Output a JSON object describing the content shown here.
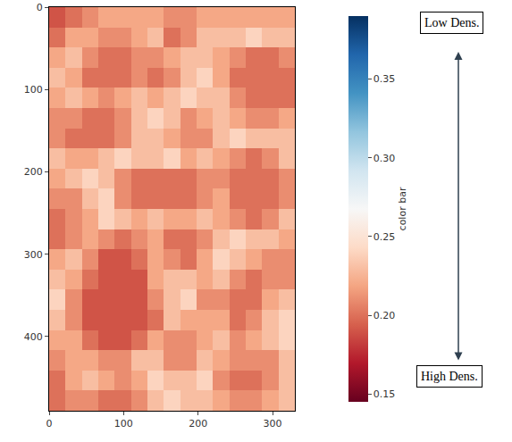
{
  "chart_data": {
    "type": "heatmap",
    "x": [
      11,
      33,
      55,
      77,
      99,
      121,
      143,
      165,
      187,
      209,
      231,
      253,
      275,
      297,
      319
    ],
    "y": [
      12.25,
      36.75,
      61.25,
      85.75,
      110.25,
      134.75,
      159.25,
      183.75,
      208.25,
      232.75,
      257.25,
      281.75,
      306.25,
      330.75,
      355.25,
      379.75,
      404.25,
      428.75,
      453.25,
      477.75
    ],
    "cells": [
      [
        0.19,
        0.2,
        0.21,
        0.22,
        0.22,
        0.22,
        0.22,
        0.21,
        0.21,
        0.22,
        0.22,
        0.22,
        0.22,
        0.22,
        0.22
      ],
      [
        0.2,
        0.22,
        0.22,
        0.21,
        0.21,
        0.22,
        0.23,
        0.2,
        0.21,
        0.23,
        0.23,
        0.23,
        0.24,
        0.23,
        0.23
      ],
      [
        0.22,
        0.23,
        0.21,
        0.2,
        0.2,
        0.21,
        0.21,
        0.22,
        0.23,
        0.23,
        0.22,
        0.21,
        0.2,
        0.2,
        0.21
      ],
      [
        0.23,
        0.22,
        0.2,
        0.2,
        0.2,
        0.21,
        0.2,
        0.21,
        0.23,
        0.24,
        0.22,
        0.2,
        0.2,
        0.2,
        0.2
      ],
      [
        0.22,
        0.23,
        0.22,
        0.21,
        0.22,
        0.23,
        0.22,
        0.23,
        0.24,
        0.23,
        0.23,
        0.21,
        0.2,
        0.2,
        0.2
      ],
      [
        0.21,
        0.21,
        0.2,
        0.2,
        0.21,
        0.23,
        0.24,
        0.23,
        0.21,
        0.22,
        0.23,
        0.22,
        0.21,
        0.21,
        0.22
      ],
      [
        0.21,
        0.2,
        0.2,
        0.2,
        0.21,
        0.23,
        0.23,
        0.22,
        0.21,
        0.21,
        0.23,
        0.24,
        0.23,
        0.23,
        0.23
      ],
      [
        0.23,
        0.22,
        0.22,
        0.23,
        0.24,
        0.23,
        0.23,
        0.24,
        0.22,
        0.23,
        0.22,
        0.21,
        0.2,
        0.21,
        0.23
      ],
      [
        0.22,
        0.23,
        0.24,
        0.23,
        0.21,
        0.2,
        0.2,
        0.2,
        0.2,
        0.21,
        0.21,
        0.2,
        0.2,
        0.2,
        0.21
      ],
      [
        0.21,
        0.21,
        0.23,
        0.24,
        0.21,
        0.2,
        0.2,
        0.2,
        0.2,
        0.21,
        0.22,
        0.2,
        0.2,
        0.2,
        0.21
      ],
      [
        0.2,
        0.21,
        0.22,
        0.24,
        0.23,
        0.22,
        0.23,
        0.22,
        0.22,
        0.23,
        0.22,
        0.21,
        0.2,
        0.21,
        0.23
      ],
      [
        0.2,
        0.21,
        0.22,
        0.21,
        0.2,
        0.21,
        0.22,
        0.2,
        0.2,
        0.21,
        0.23,
        0.24,
        0.23,
        0.23,
        0.22
      ],
      [
        0.22,
        0.23,
        0.21,
        0.19,
        0.19,
        0.2,
        0.22,
        0.21,
        0.2,
        0.22,
        0.24,
        0.23,
        0.22,
        0.21,
        0.21
      ],
      [
        0.23,
        0.22,
        0.2,
        0.19,
        0.19,
        0.19,
        0.22,
        0.23,
        0.23,
        0.22,
        0.23,
        0.21,
        0.2,
        0.21,
        0.21
      ],
      [
        0.24,
        0.21,
        0.19,
        0.19,
        0.19,
        0.19,
        0.21,
        0.23,
        0.24,
        0.21,
        0.21,
        0.2,
        0.2,
        0.22,
        0.23
      ],
      [
        0.23,
        0.21,
        0.19,
        0.19,
        0.19,
        0.19,
        0.2,
        0.23,
        0.22,
        0.22,
        0.22,
        0.2,
        0.21,
        0.23,
        0.24
      ],
      [
        0.22,
        0.22,
        0.2,
        0.19,
        0.19,
        0.2,
        0.22,
        0.21,
        0.21,
        0.22,
        0.23,
        0.21,
        0.22,
        0.23,
        0.24
      ],
      [
        0.21,
        0.22,
        0.22,
        0.21,
        0.21,
        0.23,
        0.23,
        0.21,
        0.21,
        0.23,
        0.22,
        0.21,
        0.21,
        0.21,
        0.23
      ],
      [
        0.2,
        0.22,
        0.23,
        0.22,
        0.21,
        0.22,
        0.24,
        0.23,
        0.23,
        0.24,
        0.21,
        0.2,
        0.2,
        0.21,
        0.23
      ],
      [
        0.2,
        0.21,
        0.21,
        0.2,
        0.2,
        0.21,
        0.23,
        0.24,
        0.23,
        0.23,
        0.22,
        0.21,
        0.21,
        0.22,
        0.23
      ]
    ],
    "xlim": [
      0,
      330
    ],
    "ylim": [
      490,
      0
    ],
    "xticks": [
      0,
      100,
      200,
      300
    ],
    "yticks": [
      0,
      100,
      200,
      300,
      400
    ],
    "colorbar": {
      "title": "color bar",
      "range": [
        0.145,
        0.39
      ],
      "ticks": [
        0.15,
        {
          "value": 0.2,
          "label": "0.20"
        },
        0.25,
        {
          "value": 0.3,
          "label": "0.30"
        },
        0.35
      ]
    },
    "annotations": [
      "Low Dens.",
      "High Dens."
    ]
  }
}
